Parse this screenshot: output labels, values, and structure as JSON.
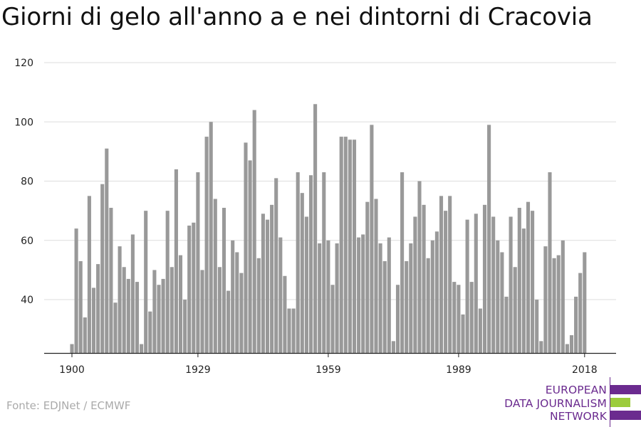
{
  "title": "Giorni di gelo all'anno a e nei dintorni di Cracovia",
  "source": "Fonte: EDJNet / ECMWF",
  "logo": {
    "lines": [
      "EUROPEAN",
      "DATA JOURNALISM",
      "NETWORK"
    ],
    "colors": {
      "purple": "#6b2b8f",
      "green": "#9ccc3c"
    }
  },
  "chart_data": {
    "type": "bar",
    "title": "Giorni di gelo all'anno a e nei dintorni di Cracovia",
    "xlabel": "",
    "ylabel": "",
    "x_start": 1900,
    "x": [
      1900,
      1901,
      1902,
      1903,
      1904,
      1905,
      1906,
      1907,
      1908,
      1909,
      1910,
      1911,
      1912,
      1913,
      1914,
      1915,
      1916,
      1917,
      1918,
      1919,
      1920,
      1921,
      1922,
      1923,
      1924,
      1925,
      1926,
      1927,
      1928,
      1929,
      1930,
      1931,
      1932,
      1933,
      1934,
      1935,
      1936,
      1937,
      1938,
      1939,
      1940,
      1941,
      1942,
      1943,
      1944,
      1945,
      1946,
      1947,
      1948,
      1949,
      1950,
      1951,
      1952,
      1953,
      1954,
      1955,
      1956,
      1957,
      1958,
      1959,
      1960,
      1961,
      1962,
      1963,
      1964,
      1965,
      1966,
      1967,
      1968,
      1969,
      1970,
      1971,
      1972,
      1973,
      1974,
      1975,
      1976,
      1977,
      1978,
      1979,
      1980,
      1981,
      1982,
      1983,
      1984,
      1985,
      1986,
      1987,
      1988,
      1989,
      1990,
      1991,
      1992,
      1993,
      1994,
      1995,
      1996,
      1997,
      1998,
      1999,
      2000,
      2001,
      2002,
      2003,
      2004,
      2005,
      2006,
      2007,
      2008,
      2009,
      2010,
      2011,
      2012,
      2013,
      2014,
      2015,
      2016,
      2017,
      2018
    ],
    "values": [
      25,
      64,
      53,
      34,
      75,
      44,
      52,
      79,
      91,
      71,
      39,
      58,
      51,
      47,
      62,
      46,
      25,
      70,
      36,
      50,
      45,
      47,
      70,
      51,
      84,
      55,
      40,
      65,
      66,
      83,
      50,
      95,
      100,
      74,
      51,
      71,
      43,
      60,
      56,
      49,
      93,
      87,
      104,
      54,
      69,
      67,
      72,
      81,
      61,
      48,
      37,
      37,
      83,
      76,
      68,
      82,
      106,
      59,
      83,
      60,
      45,
      59,
      95,
      95,
      94,
      94,
      61,
      62,
      73,
      99,
      74,
      59,
      53,
      61,
      26,
      45,
      83,
      53,
      59,
      68,
      80,
      72,
      54,
      60,
      63,
      75,
      70,
      75,
      46,
      45,
      35,
      67,
      46,
      69,
      37,
      72,
      99,
      68,
      60,
      56,
      41,
      68,
      51,
      71,
      64,
      73,
      70,
      40,
      26,
      58,
      83,
      54,
      55,
      60,
      25,
      28,
      41,
      49,
      56
    ],
    "ylim": [
      22,
      120
    ],
    "y_ticks": [
      40,
      60,
      80,
      100,
      120
    ],
    "x_ticks": [
      1900,
      1929,
      1959,
      1989,
      2018
    ],
    "grid": true,
    "bar_color": "#999999"
  }
}
